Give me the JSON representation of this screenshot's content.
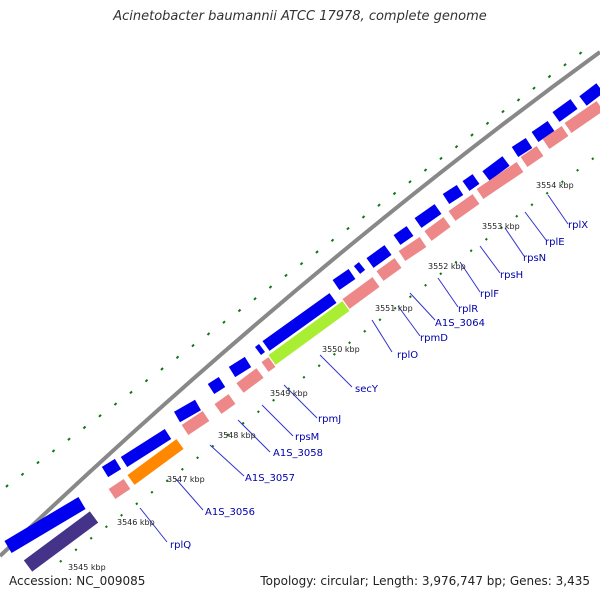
{
  "title": "Acinetobacter baumannii ATCC 17978, complete genome",
  "footer": {
    "accession": "Accession: NC_009085",
    "topology": "Topology: circular; Length: 3,976,747 bp; Genes: 3,435"
  },
  "colors": {
    "forward_gene": "#0000ee",
    "reverse_gene": "#ee8888",
    "secY": "#aaee33",
    "A1S_3056": "#ff8800",
    "left_gene": "#443388",
    "backbone": "#888888",
    "tick": "#117711",
    "label": "#0000aa"
  },
  "kbp_labels": [
    "3545 kbp",
    "3546 kbp",
    "3547 kbp",
    "3548 kbp",
    "3549 kbp",
    "3550 kbp",
    "3551 kbp",
    "3552 kbp",
    "3553 kbp",
    "3554 kbp"
  ],
  "gene_labels": [
    "rplQ",
    "A1S_3056",
    "A1S_3057",
    "A1S_3058",
    "rpsM",
    "rpmJ",
    "secY",
    "rplO",
    "rpmD",
    "A1S_3064",
    "rplR",
    "rplF",
    "rpsH",
    "rpsN",
    "rplE",
    "rplX"
  ]
}
